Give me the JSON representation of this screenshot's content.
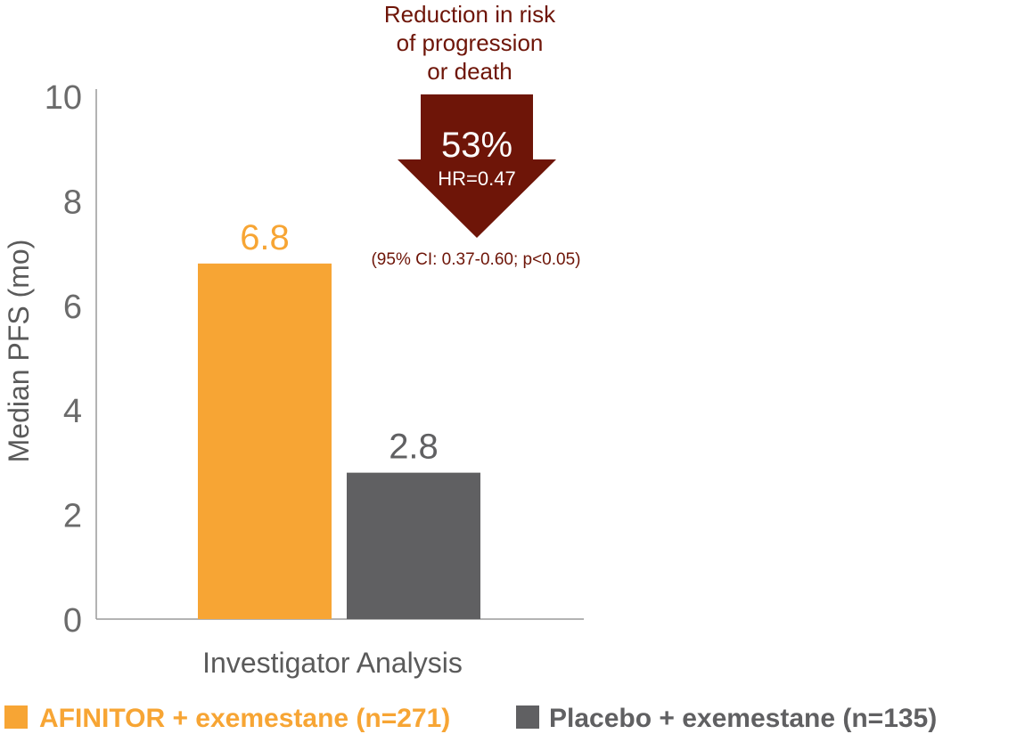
{
  "chart_data": {
    "type": "bar",
    "ylabel": "Median PFS (mo)",
    "ylim": [
      0,
      10
    ],
    "yticks": [
      0,
      2,
      4,
      6,
      8,
      10
    ],
    "categories": [
      "Investigator Analysis"
    ],
    "series": [
      {
        "name": "AFINITOR + exemestane (n=271)",
        "values": [
          6.8
        ],
        "color": "#f7a534",
        "label": "6.8"
      },
      {
        "name": "Placebo + exemestane (n=135)",
        "values": [
          2.8
        ],
        "color": "#606062",
        "label": "2.8"
      }
    ],
    "legend_position": "bottom",
    "grid": false,
    "annotation": {
      "title_lines": [
        "Reduction in risk",
        "of progression",
        "or death"
      ],
      "value": "53%",
      "hr": "HR=0.47",
      "ci": "(95% CI: 0.37-0.60; p<0.05)",
      "color": "#6e1508"
    }
  }
}
